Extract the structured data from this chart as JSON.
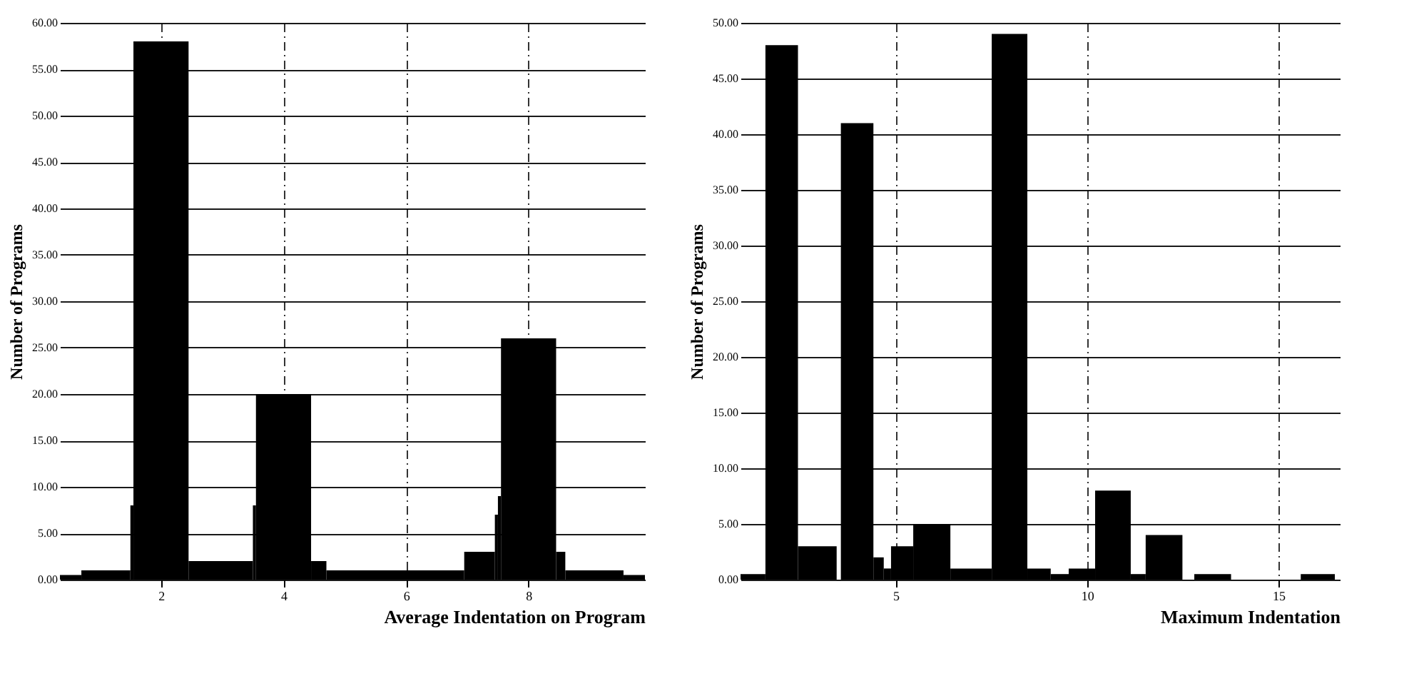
{
  "chart_data": [
    {
      "type": "histogram",
      "xlabel": "Average Indentation on Program",
      "ylabel": "Number of Programs",
      "color": "#000000",
      "bins": [
        0.35,
        0.7,
        1.5,
        1.55,
        2.45,
        3.5,
        3.55,
        4.45,
        4.7,
        6.95,
        7.45,
        7.5,
        7.55,
        8.45,
        8.6,
        9.55,
        9.9
      ],
      "values": [
        0.5,
        1,
        8,
        58,
        2,
        8,
        20,
        2,
        1,
        3,
        7,
        9,
        26,
        3,
        1,
        0.5
      ],
      "xlim": [
        0.35,
        9.9
      ],
      "xticks": [
        2,
        4,
        6,
        8
      ],
      "ylim": [
        0,
        60
      ],
      "yticks": [
        {
          "value": 0,
          "label": "0.00"
        },
        {
          "value": 5,
          "label": "5.00"
        },
        {
          "value": 10,
          "label": "10.00"
        },
        {
          "value": 15,
          "label": "15.00"
        },
        {
          "value": 20,
          "label": "20.00"
        },
        {
          "value": 25,
          "label": "25.00"
        },
        {
          "value": 30,
          "label": "30.00"
        },
        {
          "value": 35,
          "label": "35.00"
        },
        {
          "value": 40,
          "label": "40.00"
        },
        {
          "value": 45,
          "label": "45.00"
        },
        {
          "value": 50,
          "label": "50.00"
        },
        {
          "value": 55,
          "label": "55.00"
        },
        {
          "value": 60,
          "label": "60.00"
        }
      ],
      "grid": true
    },
    {
      "type": "histogram",
      "xlabel": "Maximum Indentation",
      "ylabel": "Number of Programs",
      "color": "#000000",
      "bins": [
        0.95,
        1.6,
        2.45,
        3.46,
        3.57,
        4.42,
        4.69,
        4.88,
        5.46,
        6.43,
        7.51,
        8.44,
        9.05,
        9.52,
        10.21,
        11.14,
        11.53,
        12.49,
        12.8,
        13.76,
        15.58,
        16.47
      ],
      "values": [
        0.5,
        48,
        3,
        0,
        41,
        2,
        1,
        3,
        5,
        1,
        49,
        1,
        0.5,
        1,
        8,
        0.5,
        4,
        0,
        0.5,
        0,
        0.5
      ],
      "xlim": [
        0.95,
        16.6
      ],
      "xticks": [
        5,
        10,
        15
      ],
      "ylim": [
        0,
        50
      ],
      "yticks": [
        {
          "value": 0,
          "label": "0.00"
        },
        {
          "value": 5,
          "label": "5.00"
        },
        {
          "value": 10,
          "label": "10.00"
        },
        {
          "value": 15,
          "label": "15.00"
        },
        {
          "value": 20,
          "label": "20.00"
        },
        {
          "value": 25,
          "label": "25.00"
        },
        {
          "value": 30,
          "label": "30.00"
        },
        {
          "value": 35,
          "label": "35.00"
        },
        {
          "value": 40,
          "label": "40.00"
        },
        {
          "value": 45,
          "label": "45.00"
        },
        {
          "value": 50,
          "label": "50.00"
        }
      ],
      "grid": true
    }
  ]
}
